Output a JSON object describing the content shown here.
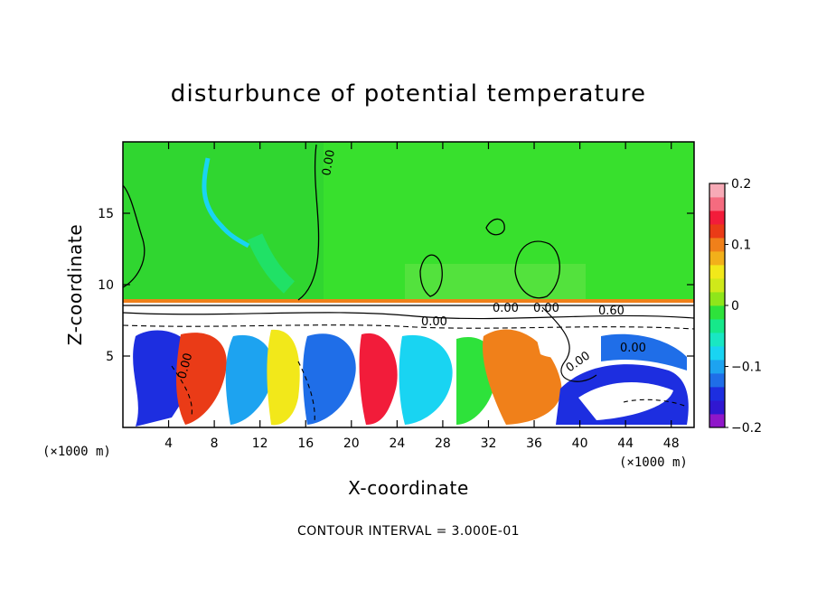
{
  "chart_data": {
    "type": "heatmap",
    "title": "disturbunce of potential temperature",
    "xlabel": "X-coordinate",
    "ylabel": "Z-coordinate",
    "xunit": "(×1000 m)",
    "yunit": "(×1000 m)",
    "xlim": [
      0,
      50
    ],
    "ylim": [
      0,
      20
    ],
    "xticks": [
      4,
      8,
      12,
      16,
      20,
      24,
      28,
      32,
      36,
      40,
      44,
      48
    ],
    "yticks": [
      5,
      10,
      15
    ],
    "colorbar": {
      "range": [
        -0.2,
        0.2
      ],
      "ticks": [
        0.2,
        0.1,
        0,
        -0.1,
        -0.2
      ],
      "tick_labels": [
        "0.2",
        "0.1",
        "0",
        "−0.1",
        "−0.2"
      ]
    },
    "contour_labels": [
      "0.00",
      "0.00",
      "0.00",
      "0.60",
      "0.00",
      "0.00",
      "0.00",
      "0.00"
    ],
    "footnote": "CONTOUR INTERVAL = 3.000E-01",
    "colors": {
      "colormap": [
        "#8f17c9",
        "#3017d1",
        "#1d2ee0",
        "#1f6ee8",
        "#1da3f0",
        "#19d4f2",
        "#19e7c3",
        "#16e88a",
        "#2ee23b",
        "#8fe61a",
        "#cfe91a",
        "#f2e81a",
        "#f2b01a",
        "#f0801a",
        "#ea3b17",
        "#f21c3a",
        "#f56b7f",
        "#f7aab6"
      ],
      "background_field": "#38e02d"
    }
  }
}
